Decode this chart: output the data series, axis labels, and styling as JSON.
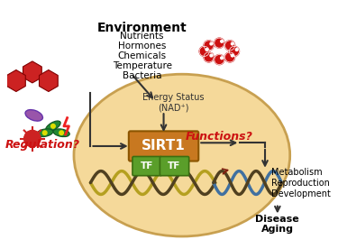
{
  "bg_color": "#ffffff",
  "cell_color": "#f5d99a",
  "cell_edge_color": "#c8a050",
  "sirt1_color": "#c87820",
  "sirt1_edge": "#8b5500",
  "tf_color": "#5a9e2a",
  "tf_edge": "#3a6e10",
  "env_title": "Environment",
  "env_items": [
    "Nutrients",
    "Hormones",
    "Chemicals",
    "Temperature",
    "Bacteria"
  ],
  "energy_text": "Energy Status\n(NAD⁺)",
  "regulation_text": "Regulation?",
  "functions_text": "Functions?",
  "outcomes": [
    "Metabolism",
    "Reproduction",
    "Development"
  ],
  "disease_text": "Disease\nAging",
  "dna_olive_color": "#b5a020",
  "dna_blue_color": "#4070a0",
  "dna_dark_color": "#504020",
  "red_color": "#cc1111",
  "arrow_color": "#333333"
}
